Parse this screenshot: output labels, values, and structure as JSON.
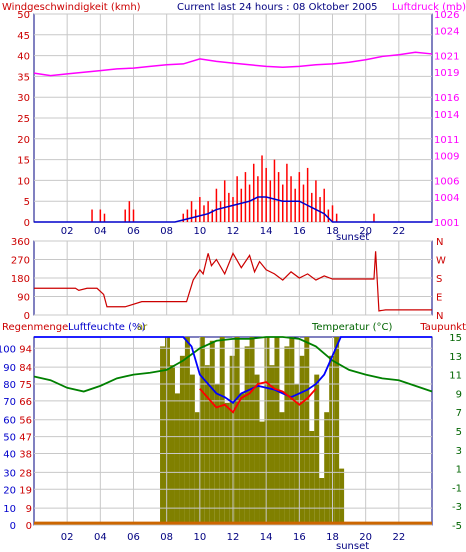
{
  "chart_data": [
    {
      "type": "line",
      "header": {
        "left": "Windgeschwindigkeit (kmh)",
        "center": "Current last 24 hours : 08 Oktober 2005",
        "right": "Luftdruck (mb)"
      },
      "ylabel_left": "Windgeschwindigkeit (kmh)",
      "ylabel_right": "Luftdruck (mb)",
      "y_left_ticks": [
        0,
        5,
        10,
        15,
        20,
        25,
        30,
        35,
        40,
        45,
        50
      ],
      "ylim_left": [
        0,
        50
      ],
      "y_right_ticks": [
        1001,
        1004,
        1006,
        1009,
        1011,
        1014,
        1016,
        1019,
        1021,
        1024,
        1026
      ],
      "ylim_right": [
        1001,
        1026
      ],
      "x_ticks": [
        "02",
        "04",
        "06",
        "08",
        "10",
        "12",
        "14",
        "16",
        "18",
        "20",
        "22"
      ],
      "xlim": [
        0,
        24
      ],
      "x_annotation": "sunset",
      "grid": true,
      "colors": {
        "wind": "#ff0000",
        "average": "#0000cc",
        "pressure": "#ff00ff"
      },
      "series": [
        {
          "name": "Luftdruck (mb)",
          "axis": "right",
          "x": [
            0,
            1,
            2,
            3,
            4,
            5,
            6,
            7,
            8,
            9,
            10,
            11,
            12,
            13,
            14,
            15,
            16,
            17,
            18,
            19,
            20,
            21,
            22,
            23,
            24
          ],
          "values": [
            1018.9,
            1018.6,
            1018.8,
            1019.0,
            1019.2,
            1019.4,
            1019.5,
            1019.7,
            1019.9,
            1020.0,
            1020.6,
            1020.3,
            1020.1,
            1019.9,
            1019.7,
            1019.6,
            1019.7,
            1019.9,
            1020.0,
            1020.2,
            1020.5,
            1020.9,
            1021.1,
            1021.4,
            1021.2
          ]
        },
        {
          "name": "wind",
          "axis": "left",
          "x": [
            3.5,
            3.75,
            4.0,
            4.25,
            5.5,
            5.75,
            6.0,
            6.25,
            9.0,
            9.25,
            9.5,
            9.75,
            10.0,
            10.25,
            10.5,
            10.75,
            11.0,
            11.25,
            11.5,
            11.75,
            12.0,
            12.25,
            12.5,
            12.75,
            13.0,
            13.25,
            13.5,
            13.75,
            14.0,
            14.25,
            14.5,
            14.75,
            15.0,
            15.25,
            15.5,
            15.75,
            16.0,
            16.25,
            16.5,
            16.75,
            17.0,
            17.25,
            17.5,
            17.75,
            18.0,
            18.25,
            20.5
          ],
          "values": [
            3,
            0,
            3,
            2,
            3,
            5,
            3,
            0,
            2,
            3,
            5,
            3,
            6,
            4,
            5,
            3,
            8,
            5,
            10,
            7,
            6,
            11,
            8,
            12,
            9,
            14,
            11,
            16,
            13,
            10,
            15,
            12,
            9,
            14,
            11,
            8,
            12,
            9,
            13,
            7,
            10,
            6,
            8,
            3,
            4,
            2,
            2
          ]
        },
        {
          "name": "average",
          "axis": "left",
          "x": [
            0,
            8.5,
            9.5,
            10.5,
            11.0,
            12.0,
            13.0,
            13.5,
            14.0,
            15.0,
            16.0,
            16.5,
            17.0,
            17.5,
            18.0,
            24
          ],
          "values": [
            0,
            0,
            1,
            2,
            3,
            4,
            5,
            6,
            6,
            5,
            5,
            4,
            3,
            2,
            0,
            0
          ]
        }
      ]
    },
    {
      "type": "line",
      "y_left_ticks": [
        0,
        90,
        180,
        270,
        360
      ],
      "ylim_left": [
        0,
        360
      ],
      "y_right_ticks": [
        "N",
        "W",
        "S",
        "E",
        "N"
      ],
      "colors": {
        "direction": "#cc0000"
      },
      "series": [
        {
          "name": "direction",
          "x": [
            0,
            2.5,
            2.7,
            3.2,
            3.8,
            4.2,
            4.4,
            5.5,
            6.5,
            7.5,
            8.5,
            9.2,
            9.6,
            10.0,
            10.2,
            10.5,
            10.7,
            11.0,
            11.5,
            12.0,
            12.5,
            13.0,
            13.3,
            13.6,
            14.0,
            14.5,
            15.0,
            15.5,
            16.0,
            16.5,
            17.0,
            17.5,
            18.0,
            18.5,
            19.0,
            20.0,
            20.5,
            20.6,
            20.8,
            21.2,
            22.0,
            23.0,
            24.0
          ],
          "values": [
            130,
            130,
            120,
            130,
            130,
            100,
            40,
            40,
            65,
            65,
            65,
            65,
            170,
            220,
            200,
            300,
            240,
            270,
            200,
            300,
            230,
            290,
            210,
            260,
            220,
            200,
            170,
            210,
            180,
            200,
            170,
            190,
            175,
            175,
            175,
            175,
            175,
            310,
            20,
            25,
            25,
            25,
            25
          ]
        }
      ]
    },
    {
      "type": "line",
      "header": {
        "left": "Regenmenge",
        "middle": "Luftfeuchte (%)",
        "bar_label": "ar",
        "right": "Temperatur (°C)",
        "far_right": "Taupunkt"
      },
      "y_left_ticks": [
        0,
        9,
        19,
        28,
        38,
        47,
        56,
        66,
        75,
        84,
        94
      ],
      "y_left_ticks_red": [
        0,
        9,
        19,
        28,
        38,
        47,
        56,
        66,
        75,
        84,
        94
      ],
      "y_left_ticks_blue": [
        0,
        10,
        20,
        30,
        40,
        50,
        60,
        70,
        80,
        90,
        100
      ],
      "ylim_left": [
        0,
        100
      ],
      "y_right_ticks": [
        -5,
        -3,
        -1,
        1,
        3,
        5,
        7,
        9,
        11,
        13,
        15
      ],
      "ylim_right": [
        -5,
        15
      ],
      "x_ticks": [
        "02",
        "04",
        "06",
        "08",
        "10",
        "12",
        "14",
        "16",
        "18",
        "20",
        "22"
      ],
      "x_annotation": "sunset",
      "colors": {
        "humidity": "#0000ff",
        "temperature": "#ff0000",
        "dewpoint": "#008000",
        "bar": "#808000",
        "rain": "#cc6600"
      },
      "series": [
        {
          "name": "Luftfeuchte (%)",
          "axis": "left",
          "x": [
            0,
            9.0,
            9.5,
            10.0,
            10.5,
            11.0,
            11.5,
            12.0,
            12.5,
            13.0,
            13.5,
            14.0,
            14.5,
            15.0,
            15.5,
            16.0,
            16.5,
            17.0,
            17.5,
            18.0,
            18.5,
            24
          ],
          "values": [
            100,
            100,
            95,
            80,
            75,
            70,
            68,
            65,
            70,
            72,
            74,
            73,
            72,
            70,
            68,
            70,
            72,
            75,
            80,
            90,
            100,
            100
          ]
        },
        {
          "name": "Temperatur (°C)",
          "axis": "right",
          "x": [
            10.0,
            10.5,
            11.0,
            11.5,
            12.0,
            12.5,
            13.0,
            13.5,
            14.0,
            14.5,
            15.0,
            15.5,
            16.0,
            16.5,
            17.0
          ],
          "values": [
            9.5,
            8.5,
            7.5,
            7.8,
            7.0,
            8.5,
            9.0,
            10.0,
            10.2,
            9.5,
            9.2,
            8.5,
            7.8,
            8.5,
            9.5
          ]
        },
        {
          "name": "Taupunkt",
          "axis": "right",
          "x": [
            0,
            1,
            2,
            3,
            4,
            5,
            6,
            7,
            8,
            9,
            10,
            11,
            12,
            13,
            14,
            15,
            16,
            17,
            18,
            19,
            20,
            21,
            22,
            23,
            24
          ],
          "values": [
            10.8,
            10.4,
            9.6,
            9.2,
            9.8,
            10.6,
            11.0,
            11.2,
            11.5,
            12.5,
            13.8,
            14.6,
            14.8,
            14.8,
            15.0,
            15.0,
            14.8,
            14.0,
            12.5,
            11.5,
            11.0,
            10.6,
            10.4,
            9.8,
            9.2
          ]
        },
        {
          "name": "bar",
          "axis": "left",
          "x": [
            7.6,
            7.9,
            8.2,
            8.5,
            8.8,
            9.1,
            9.4,
            9.7,
            10.0,
            10.3,
            10.6,
            10.9,
            11.2,
            11.5,
            11.8,
            12.1,
            12.4,
            12.7,
            13.0,
            13.3,
            13.6,
            13.9,
            14.2,
            14.5,
            14.8,
            15.1,
            15.4,
            15.7,
            16.0,
            16.3,
            16.6,
            16.9,
            17.2,
            17.5,
            17.8,
            18.1,
            18.4
          ],
          "values": [
            95,
            100,
            85,
            70,
            90,
            100,
            80,
            60,
            100,
            85,
            98,
            75,
            100,
            65,
            90,
            100,
            70,
            95,
            100,
            80,
            55,
            100,
            85,
            100,
            60,
            95,
            100,
            75,
            90,
            100,
            50,
            80,
            25,
            60,
            90,
            100,
            30
          ]
        },
        {
          "name": "Regenmenge",
          "axis": "left",
          "x": [
            0,
            24
          ],
          "values": [
            1,
            1
          ]
        }
      ]
    }
  ]
}
